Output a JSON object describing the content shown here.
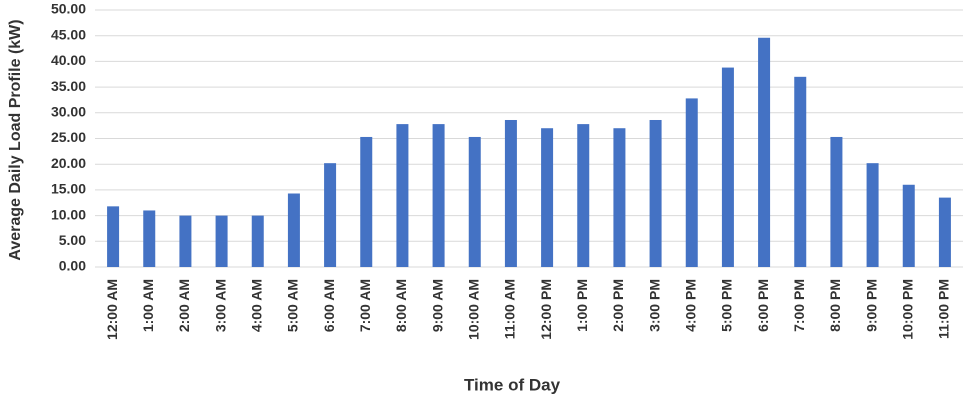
{
  "chart_data": {
    "type": "bar",
    "x_label": "Time of Day",
    "y_label": "Average Daily Load Profile (kW)",
    "categories": [
      "12:00 AM",
      "1:00 AM",
      "2:00 AM",
      "3:00 AM",
      "4:00 AM",
      "5:00 AM",
      "6:00 AM",
      "7:00 AM",
      "8:00 AM",
      "9:00 AM",
      "10:00 AM",
      "11:00 AM",
      "12:00 PM",
      "1:00 PM",
      "2:00 PM",
      "3:00 PM",
      "4:00 PM",
      "5:00 PM",
      "6:00 PM",
      "7:00 PM",
      "8:00 PM",
      "9:00 PM",
      "10:00 PM",
      "11:00 PM"
    ],
    "values": [
      11.8,
      11,
      10,
      10,
      10,
      14.3,
      20.2,
      25.3,
      27.8,
      27.8,
      25.3,
      28.6,
      27,
      27.8,
      27,
      28.6,
      32.8,
      38.8,
      44.6,
      37,
      25.3,
      20.2,
      16,
      13.5
    ],
    "color": "#4472c4",
    "ylim": [
      0,
      50
    ],
    "yticks": [
      {
        "value": 0,
        "label": "0.00"
      },
      {
        "value": 5,
        "label": "5.00"
      },
      {
        "value": 10,
        "label": "10.00"
      },
      {
        "value": 15,
        "label": "15.00"
      },
      {
        "value": 20,
        "label": "20.00"
      },
      {
        "value": 25,
        "label": "25.00"
      },
      {
        "value": 30,
        "label": "30.00"
      },
      {
        "value": 35,
        "label": "35.00"
      },
      {
        "value": 40,
        "label": "40.00"
      },
      {
        "value": 45,
        "label": "45.00"
      },
      {
        "value": 50,
        "label": "50.00"
      }
    ],
    "grid": true
  }
}
